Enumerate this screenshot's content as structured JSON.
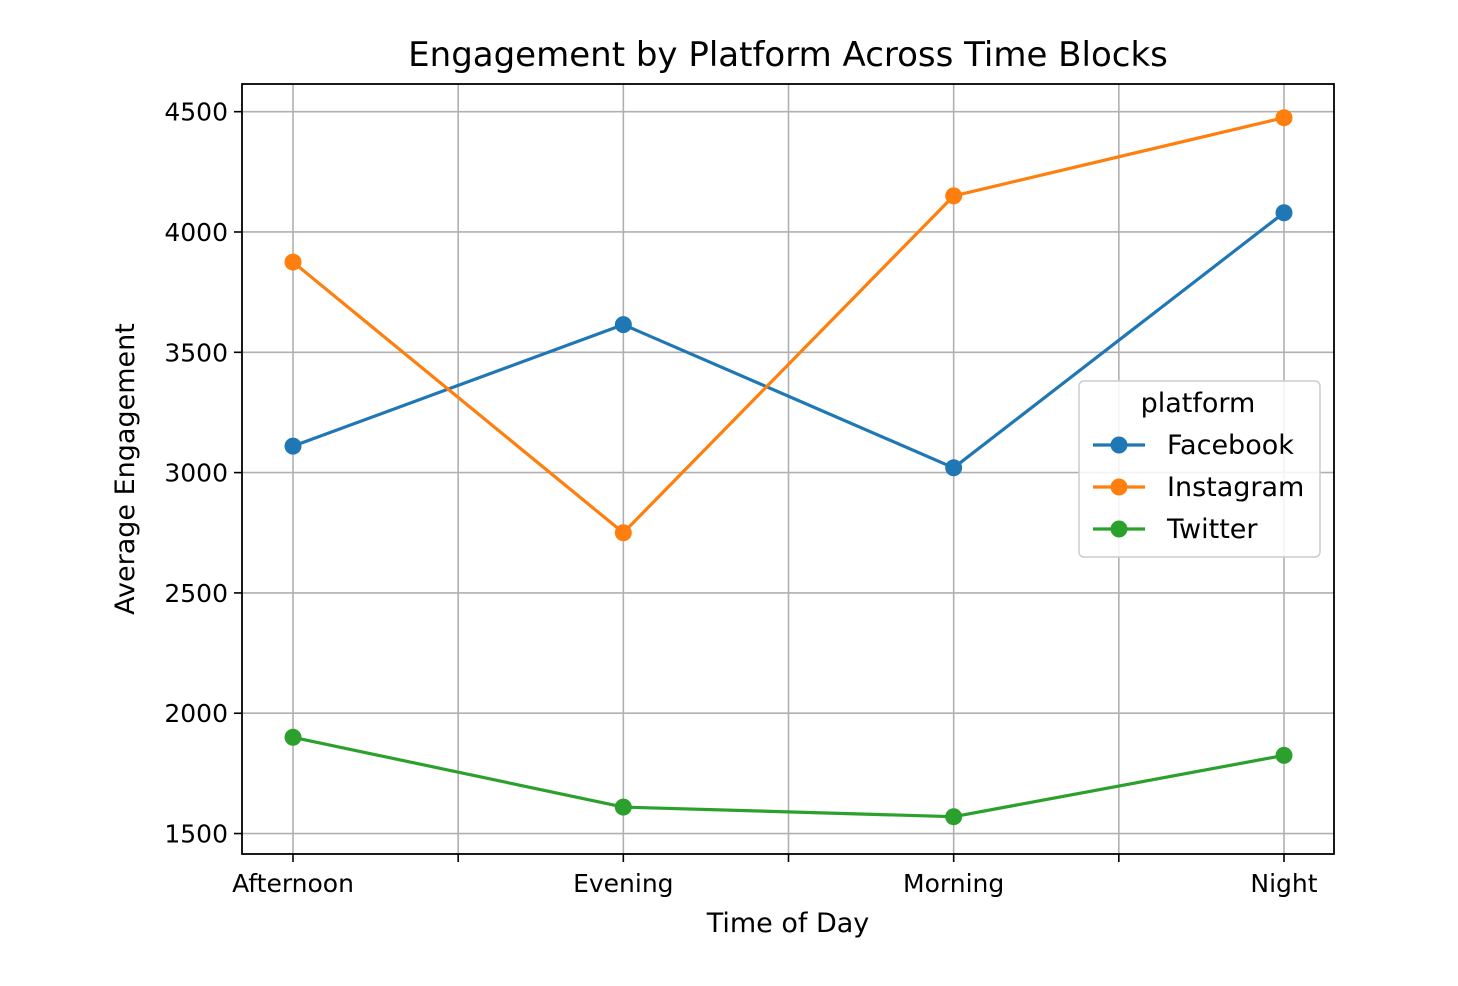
{
  "chart_data": {
    "type": "line",
    "title": "Engagement by Platform Across Time Blocks",
    "xlabel": "Time of Day",
    "ylabel": "Average Engagement",
    "categories": [
      "Afternoon",
      "Evening",
      "Morning",
      "Night"
    ],
    "ylim": [
      1415,
      4615
    ],
    "yticks": [
      1500,
      2000,
      2500,
      3000,
      3500,
      4000,
      4500
    ],
    "grid": true,
    "legend": {
      "title": "platform",
      "placement": "right"
    },
    "series": [
      {
        "name": "Facebook",
        "color": "#1f77b4",
        "values": [
          3110,
          3615,
          3020,
          4080
        ]
      },
      {
        "name": "Instagram",
        "color": "#ff7f0e",
        "values": [
          3875,
          2750,
          4150,
          4475
        ]
      },
      {
        "name": "Twitter",
        "color": "#2ca02c",
        "values": [
          1900,
          1610,
          1570,
          1825
        ]
      }
    ]
  }
}
